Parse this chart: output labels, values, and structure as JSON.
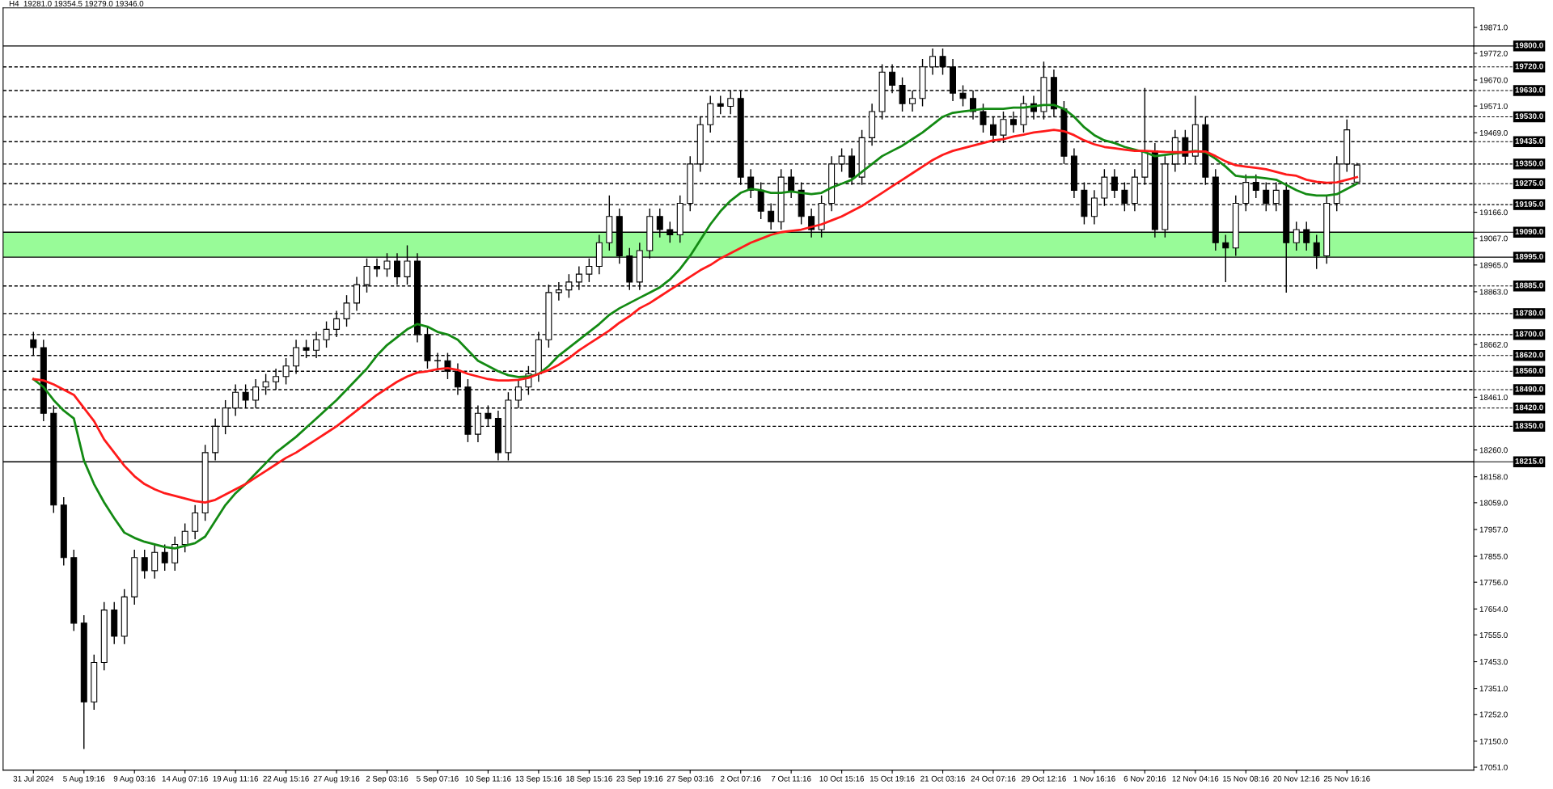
{
  "chart_data": {
    "type": "candlestick",
    "title": "H4  19281.0 19354.5 19279.0 19346.0",
    "categories": [
      "31 Jul 2024",
      null,
      null,
      null,
      null,
      "5 Aug 19:16",
      null,
      null,
      null,
      null,
      "9 Aug 03:16",
      null,
      null,
      null,
      null,
      "14 Aug 07:16",
      null,
      null,
      null,
      null,
      "19 Aug 11:16",
      null,
      null,
      null,
      null,
      "22 Aug 15:16",
      null,
      null,
      null,
      null,
      "27 Aug 19:16",
      null,
      null,
      null,
      null,
      "2 Sep 03:16",
      null,
      null,
      null,
      null,
      "5 Sep 07:16",
      null,
      null,
      null,
      null,
      "10 Sep 11:16",
      null,
      null,
      null,
      null,
      "13 Sep 15:16",
      null,
      null,
      null,
      null,
      "18 Sep 15:16",
      null,
      null,
      null,
      null,
      "23 Sep 19:16",
      null,
      null,
      null,
      null,
      "27 Sep 03:16",
      null,
      null,
      null,
      null,
      "2 Oct 07:16",
      null,
      null,
      null,
      null,
      "7 Oct 11:16",
      null,
      null,
      null,
      null,
      "10 Oct 15:16",
      null,
      null,
      null,
      null,
      "15 Oct 19:16",
      null,
      null,
      null,
      null,
      "21 Oct 03:16",
      null,
      null,
      null,
      null,
      "24 Oct 07:16",
      null,
      null,
      null,
      null,
      "29 Oct 12:16",
      null,
      null,
      null,
      null,
      "1 Nov 16:16",
      null,
      null,
      null,
      null,
      "6 Nov 20:16",
      null,
      null,
      null,
      null,
      "12 Nov 04:16",
      null,
      null,
      null,
      null,
      "15 Nov 08:16",
      null,
      null,
      null,
      null,
      "20 Nov 12:16",
      null,
      null,
      null,
      null,
      "25 Nov 16:16",
      null
    ],
    "ohlc": [
      [
        18680,
        18710,
        18620,
        18650
      ],
      [
        18650,
        18680,
        18370,
        18400
      ],
      [
        18400,
        18430,
        18020,
        18050
      ],
      [
        18050,
        18080,
        17820,
        17850
      ],
      [
        17850,
        17880,
        17570,
        17600
      ],
      [
        17600,
        17630,
        17120,
        17300
      ],
      [
        17300,
        17480,
        17270,
        17450
      ],
      [
        17450,
        17680,
        17420,
        17650
      ],
      [
        17650,
        17680,
        17520,
        17550
      ],
      [
        17550,
        17730,
        17520,
        17700
      ],
      [
        17700,
        17880,
        17670,
        17850
      ],
      [
        17850,
        17880,
        17770,
        17800
      ],
      [
        17800,
        17900,
        17770,
        17870
      ],
      [
        17870,
        17900,
        17800,
        17830
      ],
      [
        17830,
        17930,
        17800,
        17900
      ],
      [
        17900,
        17980,
        17870,
        17950
      ],
      [
        17950,
        18050,
        17920,
        18020
      ],
      [
        18020,
        18280,
        17990,
        18250
      ],
      [
        18250,
        18380,
        18220,
        18350
      ],
      [
        18350,
        18450,
        18320,
        18420
      ],
      [
        18420,
        18510,
        18390,
        18480
      ],
      [
        18480,
        18510,
        18420,
        18450
      ],
      [
        18450,
        18530,
        18420,
        18500
      ],
      [
        18500,
        18550,
        18470,
        18520
      ],
      [
        18520,
        18570,
        18490,
        18540
      ],
      [
        18540,
        18610,
        18510,
        18580
      ],
      [
        18580,
        18680,
        18550,
        18650
      ],
      [
        18650,
        18680,
        18610,
        18640
      ],
      [
        18640,
        18710,
        18610,
        18680
      ],
      [
        18680,
        18750,
        18650,
        18720
      ],
      [
        18720,
        18790,
        18690,
        18760
      ],
      [
        18760,
        18850,
        18730,
        18820
      ],
      [
        18820,
        18920,
        18790,
        18890
      ],
      [
        18890,
        18990,
        18860,
        18960
      ],
      [
        18960,
        18990,
        18920,
        18950
      ],
      [
        18950,
        19010,
        18920,
        18980
      ],
      [
        18980,
        19010,
        18890,
        18920
      ],
      [
        18920,
        19040,
        18890,
        18980
      ],
      [
        18980,
        19010,
        18670,
        18700
      ],
      [
        18700,
        18730,
        18570,
        18600
      ],
      [
        18600,
        18630,
        18570,
        18600
      ],
      [
        18600,
        18630,
        18530,
        18560
      ],
      [
        18560,
        18590,
        18470,
        18500
      ],
      [
        18500,
        18530,
        18290,
        18320
      ],
      [
        18320,
        18430,
        18290,
        18400
      ],
      [
        18400,
        18430,
        18350,
        18380
      ],
      [
        18380,
        18410,
        18220,
        18250
      ],
      [
        18250,
        18480,
        18220,
        18450
      ],
      [
        18450,
        18530,
        18420,
        18500
      ],
      [
        18500,
        18580,
        18470,
        18550
      ],
      [
        18550,
        18710,
        18520,
        18680
      ],
      [
        18680,
        18890,
        18650,
        18860
      ],
      [
        18860,
        18900,
        18830,
        18870
      ],
      [
        18870,
        18930,
        18840,
        18900
      ],
      [
        18900,
        18960,
        18870,
        18930
      ],
      [
        18930,
        18990,
        18900,
        18960
      ],
      [
        18960,
        19080,
        18930,
        19050
      ],
      [
        19050,
        19230,
        19020,
        19150
      ],
      [
        19150,
        19180,
        18970,
        19000
      ],
      [
        19000,
        19030,
        18870,
        18900
      ],
      [
        18900,
        19050,
        18870,
        19020
      ],
      [
        19020,
        19180,
        18990,
        19150
      ],
      [
        19150,
        19180,
        19070,
        19100
      ],
      [
        19100,
        19130,
        19050,
        19080
      ],
      [
        19080,
        19230,
        19050,
        19200
      ],
      [
        19200,
        19380,
        19170,
        19350
      ],
      [
        19350,
        19530,
        19320,
        19500
      ],
      [
        19500,
        19610,
        19470,
        19580
      ],
      [
        19580,
        19610,
        19540,
        19570
      ],
      [
        19570,
        19630,
        19540,
        19600
      ],
      [
        19600,
        19630,
        19270,
        19300
      ],
      [
        19300,
        19330,
        19220,
        19250
      ],
      [
        19250,
        19280,
        19140,
        19170
      ],
      [
        19170,
        19200,
        19100,
        19130
      ],
      [
        19130,
        19330,
        19100,
        19300
      ],
      [
        19300,
        19330,
        19220,
        19250
      ],
      [
        19250,
        19280,
        19120,
        19150
      ],
      [
        19150,
        19180,
        19070,
        19100
      ],
      [
        19100,
        19230,
        19070,
        19200
      ],
      [
        19200,
        19380,
        19170,
        19350
      ],
      [
        19350,
        19410,
        19320,
        19380
      ],
      [
        19380,
        19410,
        19270,
        19300
      ],
      [
        19300,
        19480,
        19270,
        19450
      ],
      [
        19450,
        19580,
        19420,
        19550
      ],
      [
        19550,
        19730,
        19520,
        19700
      ],
      [
        19700,
        19730,
        19620,
        19650
      ],
      [
        19650,
        19680,
        19550,
        19580
      ],
      [
        19580,
        19630,
        19550,
        19600
      ],
      [
        19600,
        19750,
        19570,
        19720
      ],
      [
        19720,
        19790,
        19690,
        19760
      ],
      [
        19760,
        19790,
        19690,
        19720
      ],
      [
        19720,
        19750,
        19590,
        19620
      ],
      [
        19620,
        19650,
        19570,
        19600
      ],
      [
        19600,
        19630,
        19520,
        19550
      ],
      [
        19550,
        19580,
        19470,
        19500
      ],
      [
        19500,
        19530,
        19430,
        19460
      ],
      [
        19460,
        19550,
        19430,
        19520
      ],
      [
        19520,
        19550,
        19470,
        19500
      ],
      [
        19500,
        19610,
        19470,
        19580
      ],
      [
        19580,
        19610,
        19520,
        19550
      ],
      [
        19550,
        19740,
        19520,
        19680
      ],
      [
        19680,
        19710,
        19530,
        19560
      ],
      [
        19560,
        19590,
        19350,
        19380
      ],
      [
        19380,
        19410,
        19220,
        19250
      ],
      [
        19250,
        19280,
        19120,
        19150
      ],
      [
        19150,
        19250,
        19120,
        19220
      ],
      [
        19220,
        19330,
        19190,
        19300
      ],
      [
        19300,
        19330,
        19220,
        19250
      ],
      [
        19250,
        19280,
        19170,
        19200
      ],
      [
        19200,
        19330,
        19170,
        19300
      ],
      [
        19300,
        19640,
        19270,
        19400
      ],
      [
        19400,
        19430,
        19070,
        19100
      ],
      [
        19100,
        19380,
        19070,
        19350
      ],
      [
        19350,
        19480,
        19320,
        19450
      ],
      [
        19450,
        19480,
        19350,
        19380
      ],
      [
        19380,
        19610,
        19350,
        19500
      ],
      [
        19500,
        19530,
        19270,
        19300
      ],
      [
        19300,
        19330,
        19020,
        19050
      ],
      [
        19050,
        19080,
        18900,
        19030
      ],
      [
        19030,
        19230,
        19000,
        19200
      ],
      [
        19200,
        19310,
        19170,
        19280
      ],
      [
        19280,
        19310,
        19220,
        19250
      ],
      [
        19250,
        19280,
        19170,
        19200
      ],
      [
        19200,
        19280,
        19170,
        19250
      ],
      [
        19250,
        19280,
        18860,
        19050
      ],
      [
        19050,
        19130,
        19020,
        19100
      ],
      [
        19100,
        19130,
        19020,
        19050
      ],
      [
        19050,
        19080,
        18950,
        19000
      ],
      [
        19000,
        19230,
        18970,
        19200
      ],
      [
        19200,
        19380,
        19170,
        19350
      ],
      [
        19350,
        19520,
        19320,
        19480
      ],
      [
        19281,
        19354.5,
        19279,
        19346
      ]
    ],
    "series": [
      {
        "type": "line",
        "color": "#138a13",
        "values": [
          18530,
          18500,
          18450,
          18410,
          18380,
          18220,
          18130,
          18060,
          18000,
          17945,
          17925,
          17910,
          17900,
          17890,
          17885,
          17895,
          17905,
          17930,
          17990,
          18050,
          18095,
          18130,
          18170,
          18210,
          18250,
          18280,
          18310,
          18345,
          18380,
          18415,
          18450,
          18490,
          18530,
          18570,
          18620,
          18660,
          18690,
          18720,
          18740,
          18730,
          18710,
          18700,
          18680,
          18640,
          18600,
          18580,
          18560,
          18545,
          18538,
          18540,
          18550,
          18580,
          18620,
          18650,
          18680,
          18710,
          18740,
          18775,
          18800,
          18820,
          18840,
          18860,
          18880,
          18910,
          18950,
          19000,
          19060,
          19120,
          19170,
          19210,
          19240,
          19255,
          19250,
          19240,
          19240,
          19245,
          19240,
          19235,
          19240,
          19260,
          19275,
          19290,
          19320,
          19350,
          19380,
          19400,
          19420,
          19445,
          19470,
          19500,
          19530,
          19545,
          19550,
          19555,
          19560,
          19560,
          19560,
          19565,
          19565,
          19570,
          19575,
          19575,
          19560,
          19530,
          19490,
          19460,
          19440,
          19430,
          19415,
          19405,
          19395,
          19380,
          19385,
          19390,
          19395,
          19400,
          19395,
          19370,
          19340,
          19305,
          19300,
          19300,
          19295,
          19290,
          19270,
          19250,
          19235,
          19230,
          19230,
          19235,
          19255,
          19275
        ]
      },
      {
        "type": "line",
        "color": "#ff1a1a",
        "values": [
          18530,
          18525,
          18510,
          18490,
          18470,
          18420,
          18370,
          18300,
          18250,
          18200,
          18160,
          18130,
          18110,
          18095,
          18085,
          18075,
          18065,
          18060,
          18070,
          18090,
          18110,
          18130,
          18155,
          18180,
          18205,
          18230,
          18250,
          18275,
          18300,
          18325,
          18350,
          18380,
          18410,
          18440,
          18470,
          18495,
          18520,
          18540,
          18555,
          18560,
          18568,
          18572,
          18565,
          18550,
          18540,
          18530,
          18525,
          18525,
          18527,
          18535,
          18550,
          18565,
          18585,
          18610,
          18640,
          18665,
          18690,
          18715,
          18745,
          18770,
          18800,
          18820,
          18845,
          18870,
          18895,
          18920,
          18945,
          18965,
          18990,
          19010,
          19030,
          19050,
          19065,
          19080,
          19090,
          19095,
          19100,
          19110,
          19120,
          19135,
          19150,
          19170,
          19190,
          19215,
          19240,
          19265,
          19290,
          19315,
          19340,
          19365,
          19385,
          19400,
          19410,
          19420,
          19430,
          19440,
          19445,
          19455,
          19462,
          19470,
          19475,
          19480,
          19475,
          19460,
          19440,
          19425,
          19415,
          19410,
          19405,
          19400,
          19400,
          19398,
          19396,
          19395,
          19395,
          19398,
          19398,
          19380,
          19360,
          19345,
          19340,
          19335,
          19330,
          19320,
          19310,
          19305,
          19290,
          19282,
          19278,
          19280,
          19290,
          19300
        ]
      }
    ],
    "ylim": [
      17040,
      19945
    ],
    "yticks": [
      {
        "value": 19871,
        "label": "19871.0"
      },
      {
        "value": 19772,
        "label": "19772.0"
      },
      {
        "value": 19670,
        "label": "19670.0"
      },
      {
        "value": 19571,
        "label": "19571.0"
      },
      {
        "value": 19469,
        "label": "19469.0"
      },
      {
        "value": 19166,
        "label": "19166.0"
      },
      {
        "value": 19067,
        "label": "19067.0"
      },
      {
        "value": 18965,
        "label": "18965.0"
      },
      {
        "value": 18863,
        "label": "18863.0"
      },
      {
        "value": 18662,
        "label": "18662.0"
      },
      {
        "value": 18461,
        "label": "18461.0"
      },
      {
        "value": 18260,
        "label": "18260.0"
      },
      {
        "value": 18158,
        "label": "18158.0"
      },
      {
        "value": 18059,
        "label": "18059.0"
      },
      {
        "value": 17957,
        "label": "17957.0"
      },
      {
        "value": 17855,
        "label": "17855.0"
      },
      {
        "value": 17756,
        "label": "17756.0"
      },
      {
        "value": 17654,
        "label": "17654.0"
      },
      {
        "value": 17555,
        "label": "17555.0"
      },
      {
        "value": 17453,
        "label": "17453.0"
      },
      {
        "value": 17351,
        "label": "17351.0"
      },
      {
        "value": 17252,
        "label": "17252.0"
      },
      {
        "value": 17150,
        "label": "17150.0"
      },
      {
        "value": 17051,
        "label": "17051.0"
      }
    ],
    "ref_lines": [
      {
        "axis": "y",
        "value": 19800,
        "label": "19800.0",
        "color": "#000000",
        "line_style": "solid"
      },
      {
        "axis": "y",
        "value": 19720,
        "label": "19720.0",
        "color": "#000000",
        "line_style": "dashed"
      },
      {
        "axis": "y",
        "value": 19630,
        "label": "19630.0",
        "color": "#000000",
        "line_style": "dashed"
      },
      {
        "axis": "y",
        "value": 19530,
        "label": "19530.0",
        "color": "#000000",
        "line_style": "dashed"
      },
      {
        "axis": "y",
        "value": 19435,
        "label": "19435.0",
        "color": "#000000",
        "line_style": "dashed"
      },
      {
        "axis": "y",
        "value": 19350,
        "label": "19350.0",
        "color": "#000000",
        "line_style": "dashed"
      },
      {
        "axis": "y",
        "value": 19275,
        "label": "19275.0",
        "color": "#000000",
        "line_style": "dashed"
      },
      {
        "axis": "y",
        "value": 19195,
        "label": "19195.0",
        "color": "#000000",
        "line_style": "dashed"
      },
      {
        "axis": "y",
        "value": 19090,
        "label": "19090.0",
        "color": "#000000",
        "line_style": "solid"
      },
      {
        "axis": "y",
        "value": 18995,
        "label": "18995.0",
        "color": "#000000",
        "line_style": "solid"
      },
      {
        "axis": "y",
        "value": 18885,
        "label": "18885.0",
        "color": "#000000",
        "line_style": "dashed"
      },
      {
        "axis": "y",
        "value": 18780,
        "label": "18780.0",
        "color": "#000000",
        "line_style": "dashed"
      },
      {
        "axis": "y",
        "value": 18700,
        "label": "18700.0",
        "color": "#000000",
        "line_style": "dashed"
      },
      {
        "axis": "y",
        "value": 18620,
        "label": "18620.0",
        "color": "#000000",
        "line_style": "dashed"
      },
      {
        "axis": "y",
        "value": 18560,
        "label": "18560.0",
        "color": "#000000",
        "line_style": "dashed"
      },
      {
        "axis": "y",
        "value": 18490,
        "label": "18490.0",
        "color": "#000000",
        "line_style": "dashed"
      },
      {
        "axis": "y",
        "value": 18420,
        "label": "18420.0",
        "color": "#000000",
        "line_style": "dashed"
      },
      {
        "axis": "y",
        "value": 18350,
        "label": "18350.0",
        "color": "#000000",
        "line_style": "dashed"
      },
      {
        "axis": "y",
        "value": 18215,
        "label": "18215.0",
        "color": "#000000",
        "line_style": "solid"
      }
    ],
    "bands": [
      {
        "axis": "y",
        "from": 18995,
        "to": 19090,
        "color": "#98fb98"
      }
    ],
    "grid": false
  }
}
